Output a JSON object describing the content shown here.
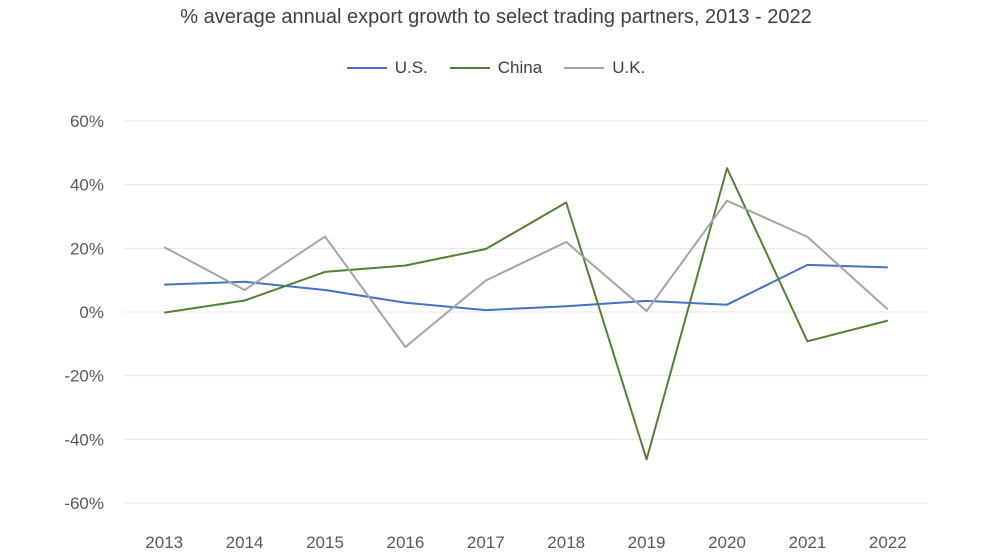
{
  "chart_data": {
    "type": "line",
    "title": "% average annual export growth to select trading partners, 2013 - 2022",
    "xlabel": "",
    "ylabel": "",
    "categories": [
      "2013",
      "2014",
      "2015",
      "2016",
      "2017",
      "2018",
      "2019",
      "2020",
      "2021",
      "2022"
    ],
    "ylim": [
      -60,
      60
    ],
    "yticks": [
      60,
      40,
      20,
      0,
      -20,
      -40,
      -60
    ],
    "ytick_labels": [
      "60%",
      "40%",
      "20%",
      "0%",
      "-20%",
      "-40%",
      "-60%"
    ],
    "grid": true,
    "legend": "top-center",
    "series": [
      {
        "name": "U.S.",
        "color": "#4472C4",
        "values": [
          8.6,
          9.5,
          6.9,
          2.9,
          0.6,
          1.8,
          3.5,
          2.3,
          14.8,
          14.0
        ]
      },
      {
        "name": "China",
        "color": "#548235",
        "values": [
          -0.2,
          3.6,
          12.6,
          14.6,
          19.8,
          34.4,
          -46.3,
          45.2,
          -9.2,
          -2.7
        ]
      },
      {
        "name": "U.K.",
        "color": "#A5A5A5",
        "values": [
          20.4,
          6.9,
          23.7,
          -11.0,
          9.9,
          22.0,
          0.3,
          35.0,
          23.6,
          0.8
        ]
      }
    ]
  }
}
